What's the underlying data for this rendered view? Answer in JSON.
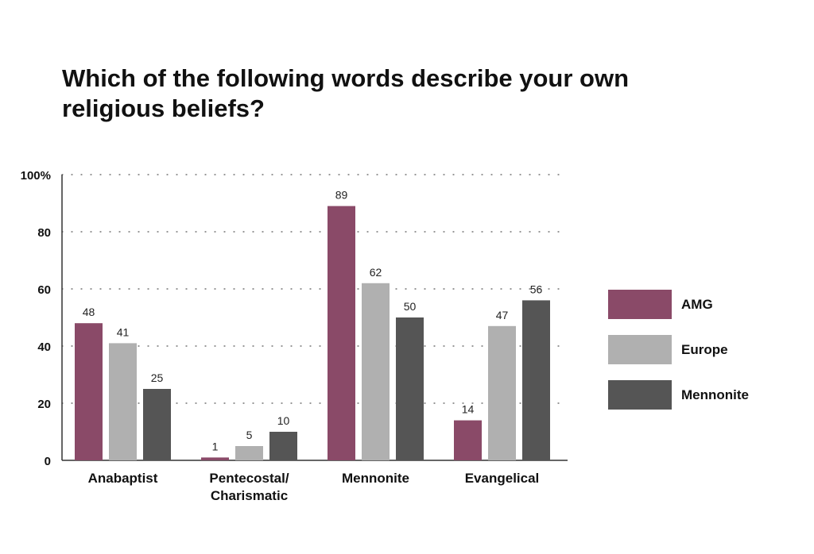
{
  "chart_data": {
    "type": "bar",
    "title": "Which of the following words describe your own religious beliefs?",
    "categories": [
      [
        "Anabaptist"
      ],
      [
        "Pentecostal/",
        "Charismatic"
      ],
      [
        "Mennonite"
      ],
      [
        "Evangelical"
      ]
    ],
    "series": [
      {
        "name": "AMG",
        "color": "#8a4a68",
        "values": [
          48,
          1,
          89,
          14
        ]
      },
      {
        "name": "Europe",
        "color": "#b0b0b0",
        "values": [
          41,
          5,
          62,
          47
        ]
      },
      {
        "name": "Mennonite",
        "color": "#555555",
        "values": [
          25,
          10,
          50,
          56
        ]
      }
    ],
    "ylim": [
      0,
      100
    ],
    "yticks": [
      {
        "value": 0,
        "label": "0"
      },
      {
        "value": 20,
        "label": "20"
      },
      {
        "value": 40,
        "label": "40"
      },
      {
        "value": 60,
        "label": "60"
      },
      {
        "value": 80,
        "label": "80"
      },
      {
        "value": 100,
        "label": "100%"
      }
    ],
    "grid": "dotted horizontal",
    "legend_position": "right",
    "data_labels": true
  }
}
